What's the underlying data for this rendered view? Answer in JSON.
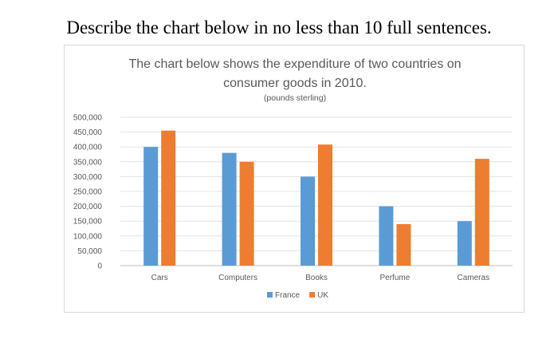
{
  "instruction": "Describe the chart below in no less than 10 full sentences.",
  "chart_data": {
    "type": "bar",
    "title_line1": "The chart below shows the expenditure of two countries on",
    "title_line2": "consumer goods in 2010.",
    "subtitle": "(pounds sterling)",
    "categories": [
      "Cars",
      "Computers",
      "Books",
      "Perfume",
      "Cameras"
    ],
    "series": [
      {
        "name": "France",
        "color": "#5b9bd5",
        "values": [
          400000,
          380000,
          300000,
          200000,
          150000
        ]
      },
      {
        "name": "UK",
        "color": "#ed7d31",
        "values": [
          455000,
          350000,
          408000,
          140000,
          360000
        ]
      }
    ],
    "yticks": [
      "0",
      "50,000",
      "100,000",
      "150,000",
      "200,000",
      "250,000",
      "300,000",
      "350,000",
      "400,000",
      "450,000",
      "500,000"
    ],
    "ylim": [
      0,
      500000
    ],
    "legend_position": "bottom",
    "grid": true
  }
}
